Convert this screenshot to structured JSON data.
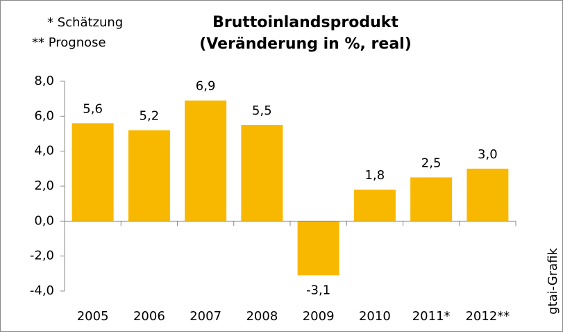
{
  "chart_data": {
    "type": "bar",
    "title": [
      "Bruttoinlandsprodukt",
      "(Veränderung in %, real)"
    ],
    "notes": [
      "* Schätzung",
      "** Prognose"
    ],
    "source": "gtai-Grafik",
    "categories": [
      "2005",
      "2006",
      "2007",
      "2008",
      "2009",
      "2010",
      "2011*",
      "2012**"
    ],
    "values": [
      5.6,
      5.2,
      6.9,
      5.5,
      -3.1,
      1.8,
      2.5,
      3.0
    ],
    "value_labels": [
      "5,6",
      "5,2",
      "6,9",
      "5,5",
      "-3,1",
      "1,8",
      "2,5",
      "3,0"
    ],
    "color": "#f9b800",
    "ylim": [
      -4,
      8
    ],
    "yticks": [
      {
        "value": -4,
        "label": "-4,0"
      },
      {
        "value": -2,
        "label": "-2,0"
      },
      {
        "value": 0,
        "label": "0,0"
      },
      {
        "value": 2,
        "label": "2,0"
      },
      {
        "value": 4,
        "label": "4,0"
      },
      {
        "value": 6,
        "label": "6,0"
      },
      {
        "value": 8,
        "label": "8,0"
      }
    ]
  }
}
